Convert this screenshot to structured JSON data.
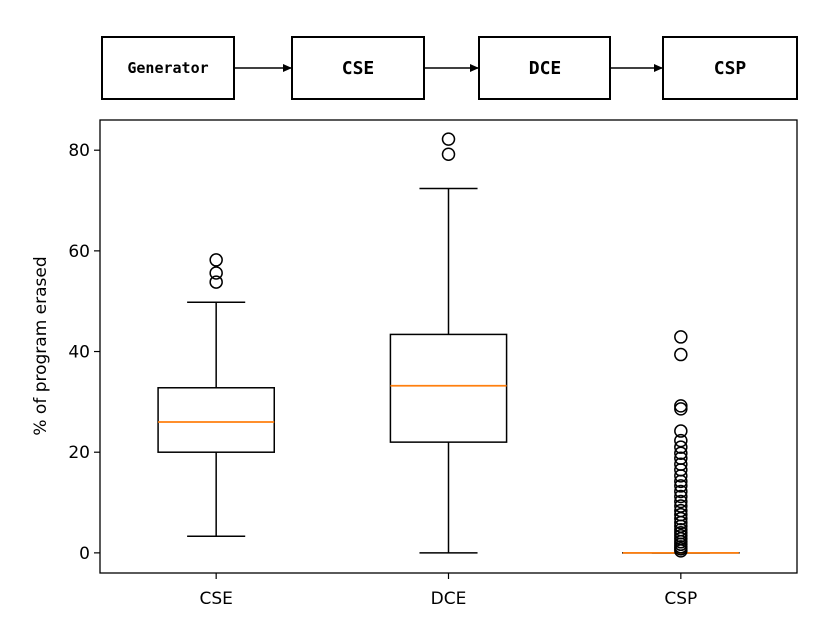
{
  "pipeline": {
    "stages": [
      "Generator",
      "CSE",
      "DCE",
      "CSP"
    ]
  },
  "chart_data": {
    "type": "box",
    "ylabel": "% of program erased",
    "ylim": [
      -4,
      86
    ],
    "yticks": [
      0,
      20,
      40,
      60,
      80
    ],
    "grid": false,
    "colors": {
      "median": "#ff7f0e",
      "box": "#000000"
    },
    "series": [
      {
        "category": "CSE",
        "whisker_low": 3.3,
        "q1": 20.0,
        "median": 26.0,
        "q3": 32.8,
        "whisker_high": 49.8,
        "outliers": [
          53.8,
          55.6,
          58.2
        ]
      },
      {
        "category": "DCE",
        "whisker_low": 0.0,
        "q1": 22.0,
        "median": 33.2,
        "q3": 43.4,
        "whisker_high": 72.4,
        "outliers": [
          79.2,
          82.2
        ]
      },
      {
        "category": "CSP",
        "whisker_low": 0.0,
        "q1": 0.0,
        "median": 0.0,
        "q3": 0.0,
        "whisker_high": 0.0,
        "outliers": [
          0.4,
          0.8,
          1.2,
          1.7,
          2.2,
          2.8,
          3.4,
          4.0,
          4.6,
          5.3,
          6.0,
          6.8,
          7.6,
          8.4,
          9.3,
          10.2,
          11.2,
          12.2,
          13.3,
          14.2,
          15.3,
          16.5,
          17.6,
          18.8,
          19.8,
          21.0,
          22.3,
          24.2,
          28.6,
          29.2,
          39.4,
          42.9
        ]
      }
    ]
  }
}
